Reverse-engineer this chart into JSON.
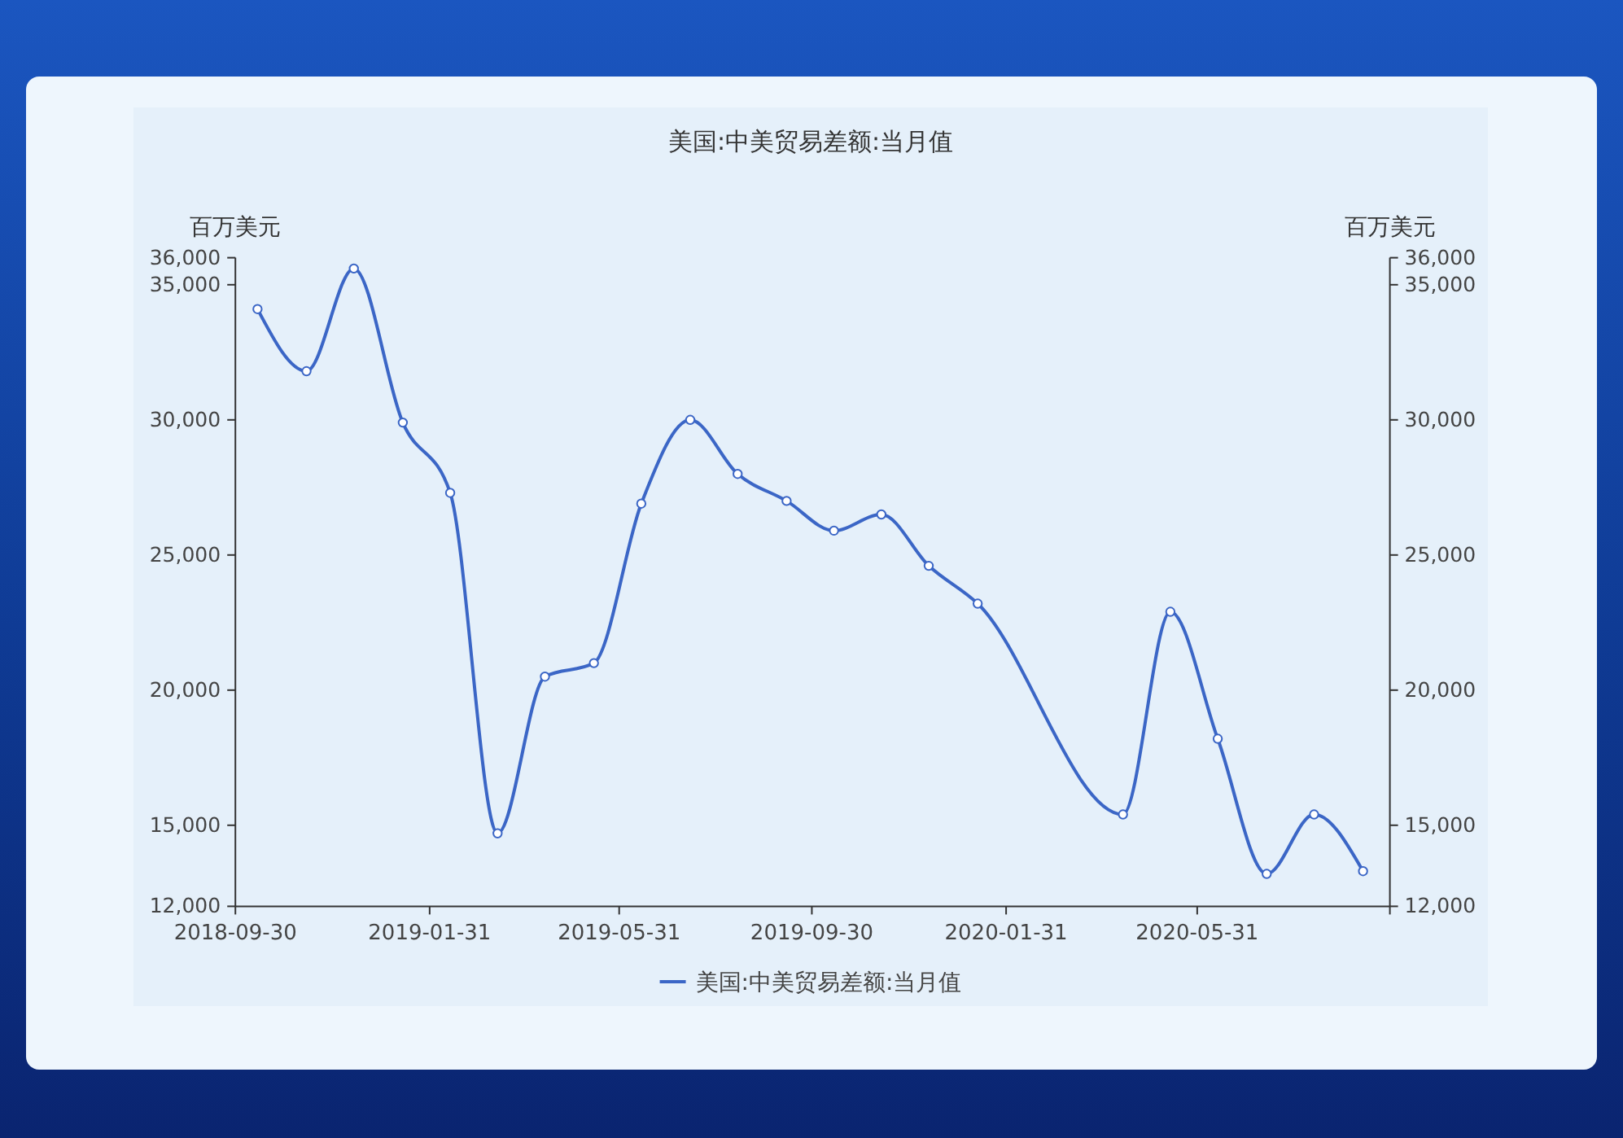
{
  "chart_data": {
    "type": "line",
    "title": "美国:中美贸易差额:当月值",
    "ylabel": "百万美元",
    "y2label": "百万美元",
    "x": [
      "2018-10-14",
      "2018-11-14",
      "2018-12-14",
      "2019-01-14",
      "2019-02-13",
      "2019-03-15",
      "2019-04-14",
      "2019-05-15",
      "2019-06-14",
      "2019-07-15",
      "2019-08-14",
      "2019-09-14",
      "2019-10-14",
      "2019-11-13",
      "2019-12-13",
      "2020-01-13",
      "2020-04-14",
      "2020-05-14",
      "2020-06-13",
      "2020-07-14",
      "2020-08-13",
      "2020-09-13"
    ],
    "series": [
      {
        "name": "美国:中美贸易差额:当月值",
        "color": "#3b66c6",
        "values": [
          34100,
          31800,
          35600,
          29900,
          27300,
          14700,
          20500,
          21000,
          26900,
          30000,
          28000,
          27000,
          25900,
          26500,
          24600,
          23200,
          15400,
          22900,
          18200,
          13200,
          15400,
          13300
        ]
      }
    ],
    "xlim": [
      "2018-09-30",
      "2020-09-30"
    ],
    "xticks": [
      "2018-09-30",
      "2019-01-31",
      "2019-05-31",
      "2019-09-30",
      "2020-01-31",
      "2020-05-31",
      {
        "value": "2020-09-30",
        "label": null
      }
    ],
    "ylim": [
      12000,
      36000
    ],
    "yticks": [
      {
        "value": 12000,
        "label": "12,000"
      },
      {
        "value": 15000,
        "label": "15,000"
      },
      {
        "value": 20000,
        "label": "20,000"
      },
      {
        "value": 25000,
        "label": "25,000"
      },
      {
        "value": 30000,
        "label": "30,000"
      },
      {
        "value": 35000,
        "label": "35,000"
      },
      {
        "value": 36000,
        "label": "36,000"
      }
    ],
    "y2lim": [
      12000,
      36000
    ],
    "y2ticks": [
      {
        "value": 12000,
        "label": "12,000"
      },
      {
        "value": 15000,
        "label": "15,000"
      },
      {
        "value": 20000,
        "label": "20,000"
      },
      {
        "value": 25000,
        "label": "25,000"
      },
      {
        "value": 30000,
        "label": "30,000"
      },
      {
        "value": 35000,
        "label": "35,000"
      },
      {
        "value": 36000,
        "label": "36,000"
      }
    ],
    "legend": "bottom",
    "marker": "circle"
  }
}
